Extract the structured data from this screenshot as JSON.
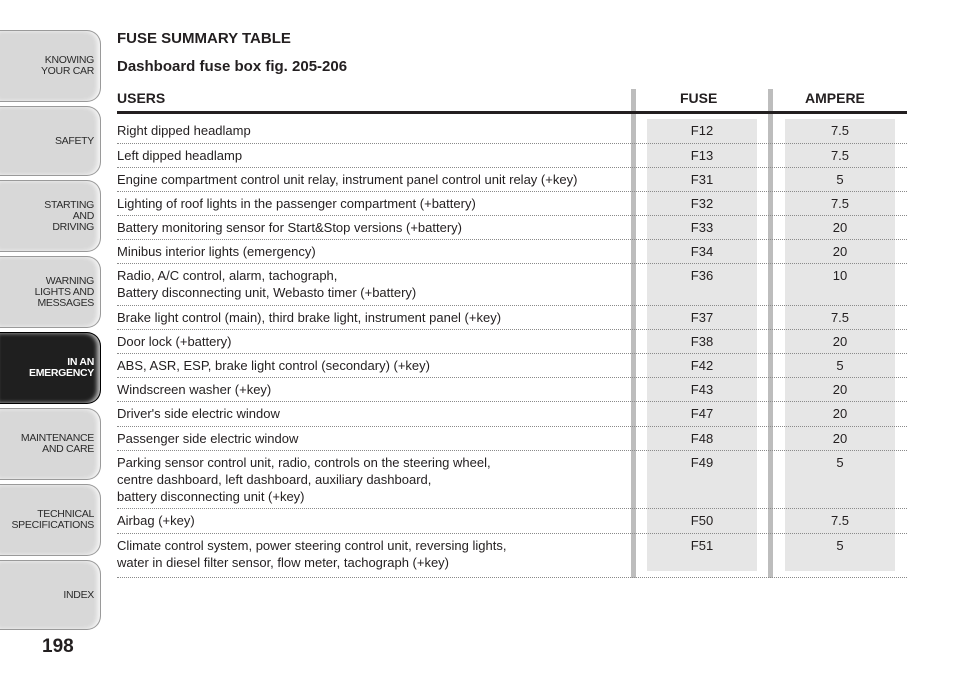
{
  "sidebar": {
    "tabs": [
      {
        "label": "KNOWING\nYOUR CAR",
        "active": false
      },
      {
        "label": "SAFETY",
        "active": false
      },
      {
        "label": "STARTING\nAND\nDRIVING",
        "active": false
      },
      {
        "label": "WARNING\nLIGHTS AND\nMESSAGES",
        "active": false
      },
      {
        "label": "IN AN\nEMERGENCY",
        "active": true
      },
      {
        "label": "MAINTENANCE\nAND CARE",
        "active": false
      },
      {
        "label": "TECHNICAL\nSPECIFICATIONS",
        "active": false
      },
      {
        "label": "INDEX",
        "active": false
      }
    ]
  },
  "page_number": "198",
  "title": "FUSE SUMMARY TABLE",
  "subtitle": "Dashboard fuse box fig. 205-206",
  "table": {
    "headers": {
      "users": "USERS",
      "fuse": "FUSE",
      "ampere": "AMPERE"
    },
    "rows": [
      {
        "user": "Right dipped headlamp",
        "fuse": "F12",
        "ampere": "7.5"
      },
      {
        "user": "Left dipped headlamp",
        "fuse": "F13",
        "ampere": "7.5"
      },
      {
        "user": "Engine compartment control unit relay, instrument panel control unit relay (+key)",
        "fuse": "F31",
        "ampere": "5"
      },
      {
        "user": "Lighting of roof lights in the passenger compartment (+battery)",
        "fuse": "F32",
        "ampere": "7.5"
      },
      {
        "user": "Battery monitoring sensor for Start&Stop versions (+battery)",
        "fuse": "F33",
        "ampere": "20"
      },
      {
        "user": "Minibus interior lights (emergency)",
        "fuse": "F34",
        "ampere": "20"
      },
      {
        "user": "Radio, A/C control, alarm, tachograph,\nBattery disconnecting unit, Webasto timer (+battery)",
        "fuse": "F36",
        "ampere": "10"
      },
      {
        "user": "Brake light control (main), third brake light, instrument panel (+key)",
        "fuse": "F37",
        "ampere": "7.5"
      },
      {
        "user": "Door lock (+battery)",
        "fuse": "F38",
        "ampere": "20"
      },
      {
        "user": "ABS, ASR, ESP, brake light control (secondary) (+key)",
        "fuse": "F42",
        "ampere": "5"
      },
      {
        "user": "Windscreen washer (+key)",
        "fuse": "F43",
        "ampere": "20"
      },
      {
        "user": "Driver's side electric window",
        "fuse": "F47",
        "ampere": "20"
      },
      {
        "user": "Passenger side electric window",
        "fuse": "F48",
        "ampere": "20"
      },
      {
        "user": "Parking sensor control unit, radio, controls on the steering wheel,\ncentre dashboard, left dashboard, auxiliary dashboard,\nbattery disconnecting unit (+key)",
        "fuse": "F49",
        "ampere": "5"
      },
      {
        "user": "Airbag (+key)",
        "fuse": "F50",
        "ampere": "7.5"
      },
      {
        "user": "Climate control system, power steering control unit, reversing lights,\nwater in diesel filter sensor, flow meter, tachograph (+key)",
        "fuse": "F51",
        "ampere": "5"
      }
    ]
  },
  "colors": {
    "active_tab": "#1f1f1f",
    "tab": "#d8d8d8",
    "column_shade": "#e6e6e6",
    "column_band": "#bdbdbd"
  }
}
